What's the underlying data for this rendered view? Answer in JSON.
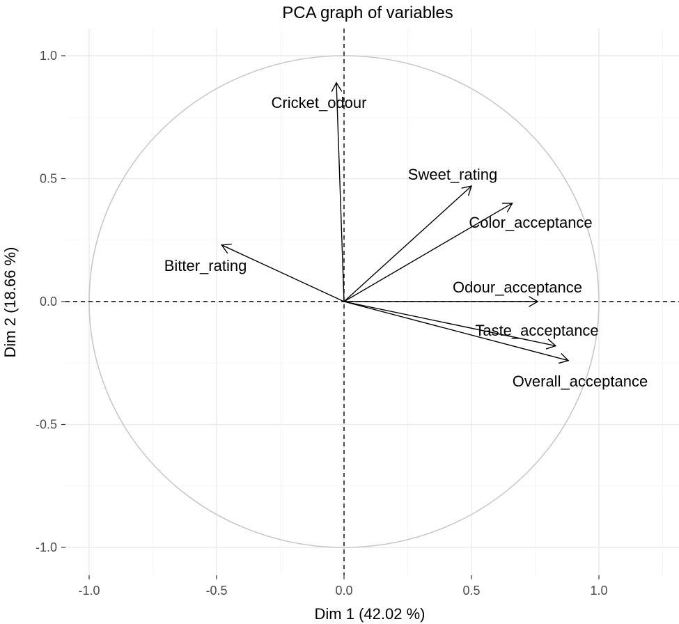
{
  "chart_data": {
    "type": "scatter",
    "title": "PCA graph of variables",
    "xlabel": "Dim 1 (42.02 %)",
    "ylabel": "Dim 2 (18.66 %)",
    "xlim": [
      -1.0,
      1.3
    ],
    "ylim": [
      -1.05,
      1.05
    ],
    "xticks": [
      -1.0,
      -0.5,
      0.0,
      0.5,
      1.0
    ],
    "xtick_labels": [
      "-1.0",
      "-0.5",
      "0.0",
      "0.5",
      "1.0"
    ],
    "yticks": [
      -1.0,
      -0.5,
      0.0,
      0.5,
      1.0
    ],
    "ytick_labels": [
      "-1.0",
      "-0.5",
      "0.0",
      "0.5",
      "1.0"
    ],
    "grid": true,
    "correlation_circle": true,
    "reference_lines": {
      "x": 0,
      "y": 0,
      "style": "dashed"
    },
    "variables": [
      {
        "name": "Cricket_odour",
        "x": -0.03,
        "y": 0.89
      },
      {
        "name": "Sweet_rating",
        "x": 0.5,
        "y": 0.47
      },
      {
        "name": "Color_acceptance",
        "x": 0.66,
        "y": 0.4
      },
      {
        "name": "Bitter_rating",
        "x": -0.48,
        "y": 0.23
      },
      {
        "name": "Odour_acceptance",
        "x": 0.76,
        "y": 0.0
      },
      {
        "name": "Taste_acceptance",
        "x": 0.83,
        "y": -0.18
      },
      {
        "name": "Overall_acceptance",
        "x": 0.88,
        "y": -0.24
      }
    ]
  }
}
